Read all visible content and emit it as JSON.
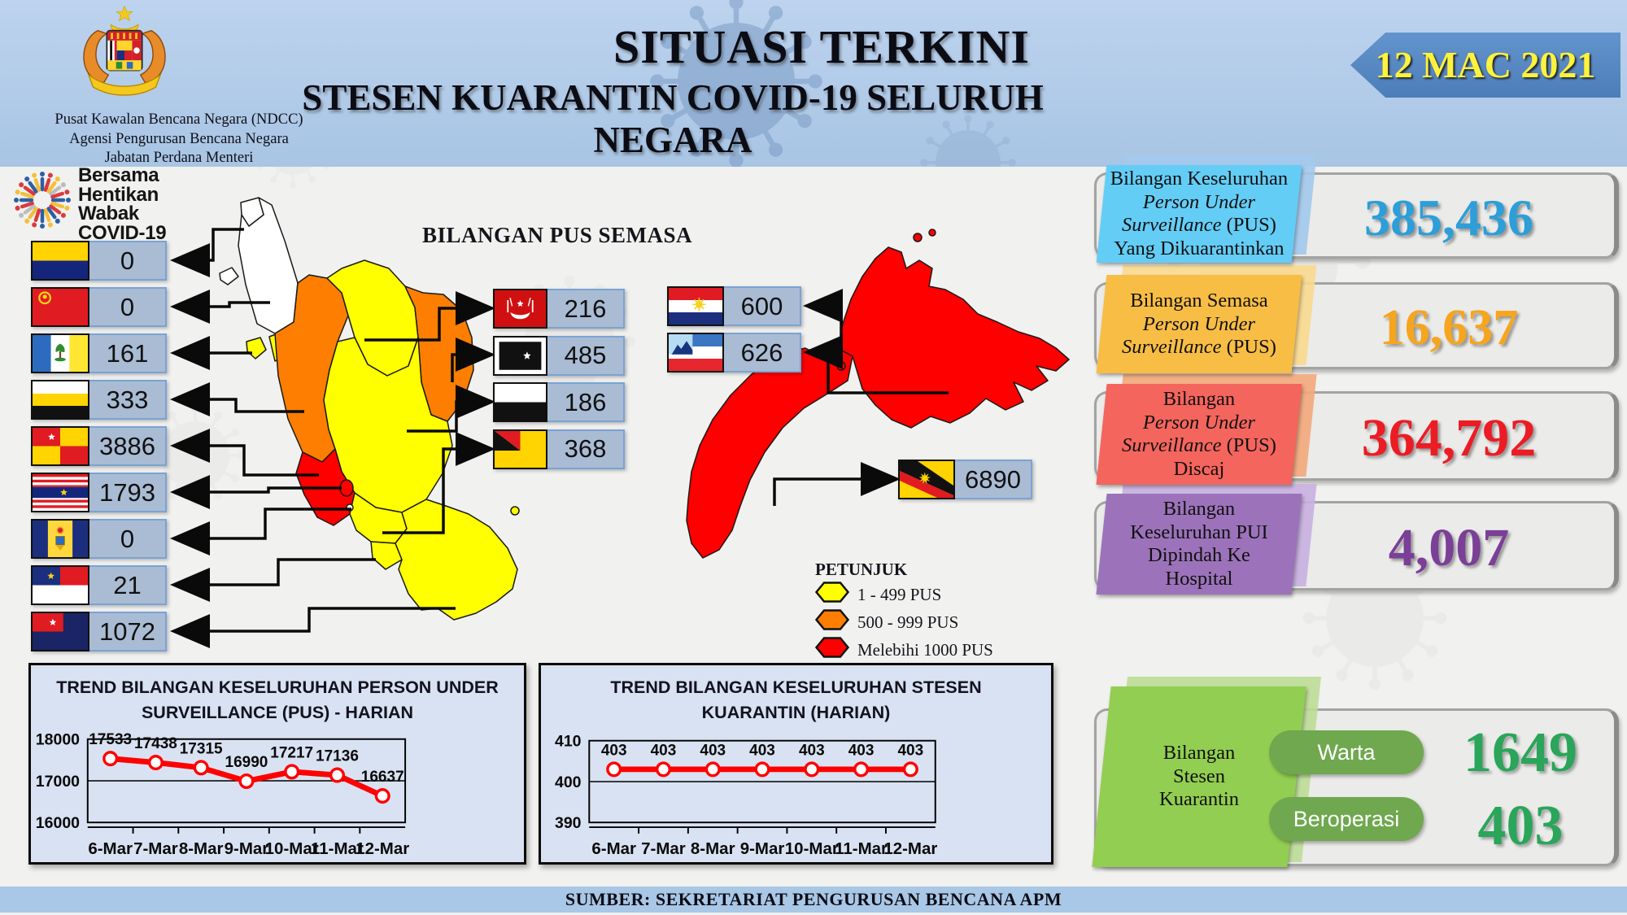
{
  "header": {
    "org": [
      "Pusat Kawalan Bencana Negara (NDCC)",
      "Agensi Pengurusan Bencana Negara",
      "Jabatan Perdana Menteri"
    ],
    "title1": "SITUASI TERKINI",
    "title2": "STESEN KUARANTIN COVID-19 SELURUH NEGARA",
    "date": "12 MAC 2021"
  },
  "campaign": {
    "lines": [
      "Bersama",
      "Hentikan",
      "Wabak",
      "COVID-19"
    ]
  },
  "map": {
    "title": "BILANGAN PUS SEMASA",
    "left_states": [
      {
        "id": "perlis",
        "name": "Perlis",
        "value": "0"
      },
      {
        "id": "kedah",
        "name": "Kedah",
        "value": "0"
      },
      {
        "id": "penang",
        "name": "Pulau Pinang",
        "value": "161"
      },
      {
        "id": "perak",
        "name": "Perak",
        "value": "333"
      },
      {
        "id": "selangor",
        "name": "Selangor",
        "value": "3886"
      },
      {
        "id": "kl",
        "name": "WP Kuala Lumpur",
        "value": "1793"
      },
      {
        "id": "putrajaya",
        "name": "WP Putrajaya",
        "value": "0"
      },
      {
        "id": "melaka",
        "name": "Melaka",
        "value": "21"
      },
      {
        "id": "johor",
        "name": "Johor",
        "value": "1072"
      }
    ],
    "center_states": [
      {
        "id": "kelantan",
        "name": "Kelantan",
        "value": "216"
      },
      {
        "id": "terengganu",
        "name": "Terengganu",
        "value": "485"
      },
      {
        "id": "pahang",
        "name": "Pahang",
        "value": "186"
      },
      {
        "id": "n9",
        "name": "Negeri Sembilan",
        "value": "368"
      }
    ],
    "east_states": [
      {
        "id": "labuan",
        "name": "WP Labuan",
        "value": "600"
      },
      {
        "id": "sabah",
        "name": "Sabah",
        "value": "626"
      },
      {
        "id": "sarawak",
        "name": "Sarawak",
        "value": "6890"
      }
    ],
    "legend": {
      "title": "PETUNJUK",
      "items": [
        {
          "label": "1 - 499 PUS",
          "color": "#ffff00"
        },
        {
          "label": "500 - 999 PUS",
          "color": "#fd7e00"
        },
        {
          "label": "Melebihi 1000 PUS",
          "color": "#fe0000"
        }
      ]
    }
  },
  "stats": [
    {
      "id": "pus-keseluruhan",
      "accent": "#64cdf6",
      "flap": "#a3c9ec",
      "value": "385,436",
      "value_color": "#2d9ed8",
      "lines": [
        [
          {
            "t": "Bilangan Keseluruhan"
          }
        ],
        [
          {
            "t": "Person Under",
            "i": 1
          }
        ],
        [
          {
            "t": "Surveillance",
            "i": 1
          },
          {
            "t": " (PUS)"
          }
        ],
        [
          {
            "t": "Yang Dikuarantinkan"
          }
        ]
      ]
    },
    {
      "id": "pus-semasa",
      "accent": "#f8bd45",
      "flap": "#fad98e",
      "value": "16,637",
      "value_color": "#f6a51e",
      "lines": [
        [
          {
            "t": "Bilangan Semasa"
          }
        ],
        [
          {
            "t": "Person Under",
            "i": 1
          }
        ],
        [
          {
            "t": "Surveillance",
            "i": 1
          },
          {
            "t": " (PUS)"
          }
        ]
      ]
    },
    {
      "id": "pus-discaj",
      "accent": "#f4655d",
      "flap": "#f3a87b",
      "value": "364,792",
      "value_color": "#ec1c24",
      "lines": [
        [
          {
            "t": "Bilangan"
          }
        ],
        [
          {
            "t": "Person Under",
            "i": 1
          }
        ],
        [
          {
            "t": "Surveillance",
            "i": 1
          },
          {
            "t": " (PUS)"
          }
        ],
        [
          {
            "t": "Discaj"
          }
        ]
      ]
    },
    {
      "id": "pui-hospital",
      "accent": "#9c73ba",
      "flap": "#c8b0e0",
      "value": "4,007",
      "value_color": "#7b3f98",
      "lines": [
        [
          {
            "t": "Bilangan"
          }
        ],
        [
          {
            "t": "Keseluruhan PUI"
          }
        ],
        [
          {
            "t": "Dipindah Ke"
          }
        ],
        [
          {
            "t": "Hospital"
          }
        ]
      ]
    },
    {
      "id": "stesen-kuarantin",
      "accent": "#92ce51",
      "flap": "#bcdd97",
      "pill_color": "#6fa84e",
      "value_color": "#2aa55a",
      "lines": [
        [
          {
            "t": "Bilangan"
          }
        ],
        [
          {
            "t": "Stesen"
          }
        ],
        [
          {
            "t": "Kuarantin"
          }
        ]
      ],
      "rows": [
        {
          "pill": "Warta",
          "value": "1649"
        },
        {
          "pill": "Beroperasi",
          "value": "403"
        }
      ]
    }
  ],
  "chart_data": [
    {
      "type": "line",
      "title_lines": [
        "TREND BILANGAN KESELURUHAN PERSON UNDER",
        "SURVEILLANCE (PUS) - HARIAN"
      ],
      "categories": [
        "6-Mar",
        "7-Mar",
        "8-Mar",
        "9-Mar",
        "10-Mar",
        "11-Mar",
        "12-Mar"
      ],
      "values": [
        17533,
        17438,
        17315,
        16990,
        17217,
        17136,
        16637
      ],
      "ylim": [
        16000,
        18000
      ],
      "yticks": [
        16000,
        17000,
        18000
      ],
      "line_color": "#fe0000",
      "marker": "white-circle",
      "grid": "horizontal",
      "legend_position": "none"
    },
    {
      "type": "line",
      "title_lines": [
        "TREND BILANGAN KESELURUHAN STESEN",
        "KUARANTIN (HARIAN)"
      ],
      "categories": [
        "6-Mar",
        "7-Mar",
        "8-Mar",
        "9-Mar",
        "10-Mar",
        "11-Mar",
        "12-Mar"
      ],
      "values": [
        403,
        403,
        403,
        403,
        403,
        403,
        403
      ],
      "ylim": [
        390,
        410
      ],
      "yticks": [
        390,
        400,
        410
      ],
      "line_color": "#fe0000",
      "marker": "white-circle",
      "grid": "horizontal",
      "legend_position": "none"
    }
  ],
  "footer": {
    "text": "SUMBER: SEKRETARIAT PENGURUSAN BENCANA APM"
  }
}
